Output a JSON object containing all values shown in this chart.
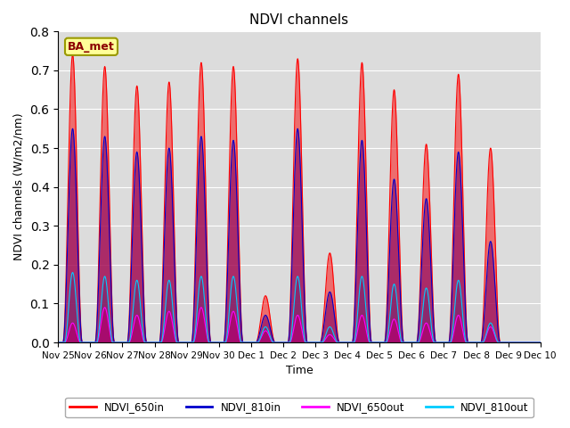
{
  "title": "NDVI channels",
  "xlabel": "Time",
  "ylabel": "NDVI channels (W/m2/nm)",
  "ylim": [
    0,
    0.8
  ],
  "yticks": [
    0.0,
    0.1,
    0.2,
    0.3,
    0.4,
    0.5,
    0.6,
    0.7,
    0.8
  ],
  "annotation_text": "BA_met",
  "background_color": "#dcdcdc",
  "colors": {
    "NDVI_650in": "#ff0000",
    "NDVI_810in": "#0000cc",
    "NDVI_650out": "#ff00ff",
    "NDVI_810out": "#00ccff"
  },
  "x_tick_labels": [
    "Nov 25",
    "Nov 26",
    "Nov 27",
    "Nov 28",
    "Nov 29",
    "Nov 30",
    "Dec 1",
    "Dec 2",
    "Dec 3",
    "Dec 4",
    "Dec 5",
    "Dec 6",
    "Dec 7",
    "Dec 8",
    "Dec 9",
    "Dec 10"
  ],
  "figsize": [
    6.4,
    4.8
  ],
  "dpi": 100,
  "day_peaks_650in": [
    0.74,
    0.71,
    0.66,
    0.67,
    0.72,
    0.71,
    0.12,
    0.73,
    0.23,
    0.72,
    0.65,
    0.51,
    0.69,
    0.5,
    0.0
  ],
  "day_peaks_810in": [
    0.55,
    0.53,
    0.49,
    0.5,
    0.53,
    0.52,
    0.07,
    0.55,
    0.13,
    0.52,
    0.42,
    0.37,
    0.49,
    0.26,
    0.0
  ],
  "day_peaks_650out": [
    0.05,
    0.09,
    0.07,
    0.08,
    0.09,
    0.08,
    0.03,
    0.07,
    0.02,
    0.07,
    0.06,
    0.05,
    0.07,
    0.04,
    0.0
  ],
  "day_peaks_810out": [
    0.18,
    0.17,
    0.16,
    0.16,
    0.17,
    0.17,
    0.04,
    0.17,
    0.04,
    0.17,
    0.15,
    0.14,
    0.16,
    0.05,
    0.0
  ]
}
